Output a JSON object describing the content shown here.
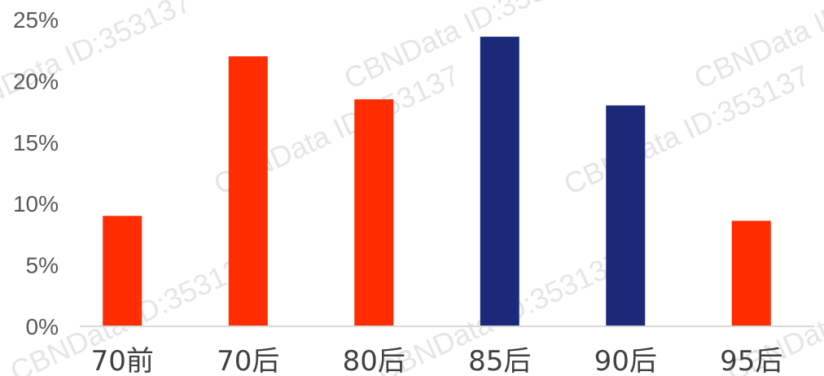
{
  "chart_data": {
    "type": "bar",
    "categories": [
      "70前",
      "70后",
      "80后",
      "85后",
      "90后",
      "95后"
    ],
    "values": [
      9.0,
      22.0,
      18.5,
      23.6,
      18.0,
      8.6
    ],
    "ylim": [
      0,
      25
    ],
    "yticks": [
      "0%",
      "5%",
      "10%",
      "15%",
      "20%",
      "25%"
    ],
    "ytick_values": [
      0,
      5,
      10,
      15,
      20,
      25
    ],
    "grid": false,
    "bar_colors": [
      "#ff2d00",
      "#ff2d00",
      "#ff2d00",
      "#1b2a78",
      "#1b2a78",
      "#ff2d00"
    ],
    "axis_color": "#d9d9d9"
  },
  "watermark": {
    "text": "CBNData ID:353137"
  }
}
